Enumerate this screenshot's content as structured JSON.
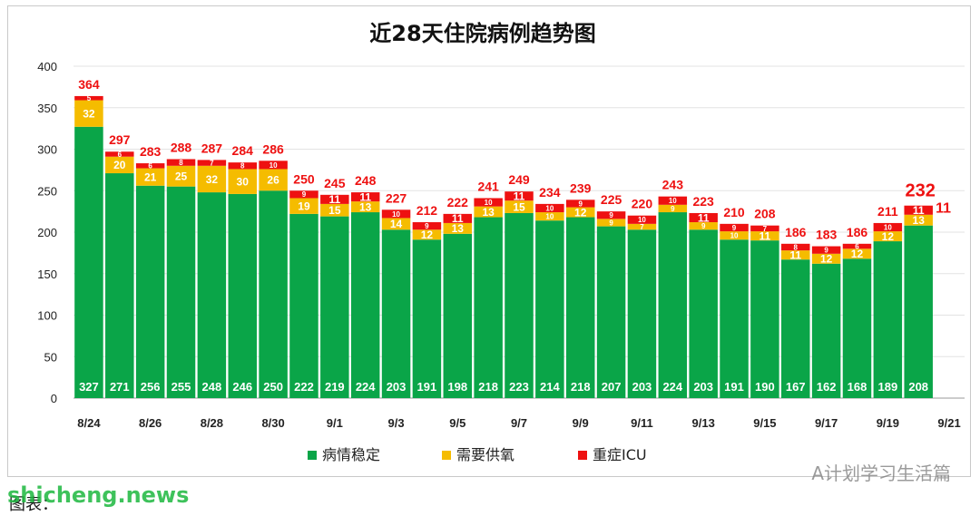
{
  "chart_data": {
    "type": "bar",
    "stacked": true,
    "title": "近28天住院病例趋势图",
    "ylim": [
      0,
      400
    ],
    "yticks": [
      0,
      50,
      100,
      150,
      200,
      250,
      300,
      350,
      400
    ],
    "grid": true,
    "legend_position": "bottom",
    "categories": [
      "8/24",
      "8/25",
      "8/26",
      "8/27",
      "8/28",
      "8/29",
      "8/30",
      "8/31",
      "9/1",
      "9/2",
      "9/3",
      "9/4",
      "9/5",
      "9/6",
      "9/7",
      "9/8",
      "9/9",
      "9/10",
      "9/11",
      "9/12",
      "9/13",
      "9/14",
      "9/15",
      "9/16",
      "9/17",
      "9/18",
      "9/19",
      "9/20",
      "9/21"
    ],
    "x_tick_labels": [
      "8/24",
      "",
      "8/26",
      "",
      "8/28",
      "",
      "8/30",
      "",
      "9/1",
      "",
      "9/3",
      "",
      "9/5",
      "",
      "9/7",
      "",
      "9/9",
      "",
      "9/11",
      "",
      "9/13",
      "",
      "9/15",
      "",
      "9/17",
      "",
      "9/19",
      "",
      "9/21"
    ],
    "series": [
      {
        "name": "病情稳定",
        "color": "#0aa548",
        "values": [
          327,
          271,
          256,
          255,
          248,
          246,
          250,
          222,
          219,
          224,
          203,
          191,
          198,
          218,
          223,
          214,
          218,
          207,
          203,
          224,
          203,
          191,
          190,
          167,
          162,
          168,
          189,
          208,
          null
        ]
      },
      {
        "name": "需要供氧",
        "color": "#f5bc00",
        "values": [
          32,
          20,
          21,
          25,
          32,
          30,
          26,
          19,
          15,
          13,
          14,
          12,
          13,
          13,
          15,
          10,
          12,
          9,
          7,
          9,
          9,
          10,
          11,
          11,
          12,
          12,
          12,
          13,
          null
        ]
      },
      {
        "name": "重症ICU",
        "color": "#ee1111",
        "values": [
          5,
          6,
          6,
          8,
          7,
          8,
          10,
          9,
          11,
          11,
          10,
          9,
          11,
          10,
          11,
          10,
          9,
          9,
          10,
          10,
          11,
          9,
          7,
          8,
          9,
          6,
          10,
          11,
          null
        ]
      }
    ],
    "totals": [
      364,
      297,
      283,
      288,
      287,
      284,
      286,
      250,
      245,
      248,
      227,
      212,
      222,
      241,
      249,
      234,
      239,
      225,
      220,
      243,
      223,
      210,
      208,
      186,
      183,
      186,
      211,
      232,
      null
    ],
    "highlight_total_index": 27,
    "highlight_color": "#ee1111"
  },
  "watermark_text": "A计划学习生活篇",
  "footer_text": "图表：",
  "site_watermark": "shicheng.news"
}
